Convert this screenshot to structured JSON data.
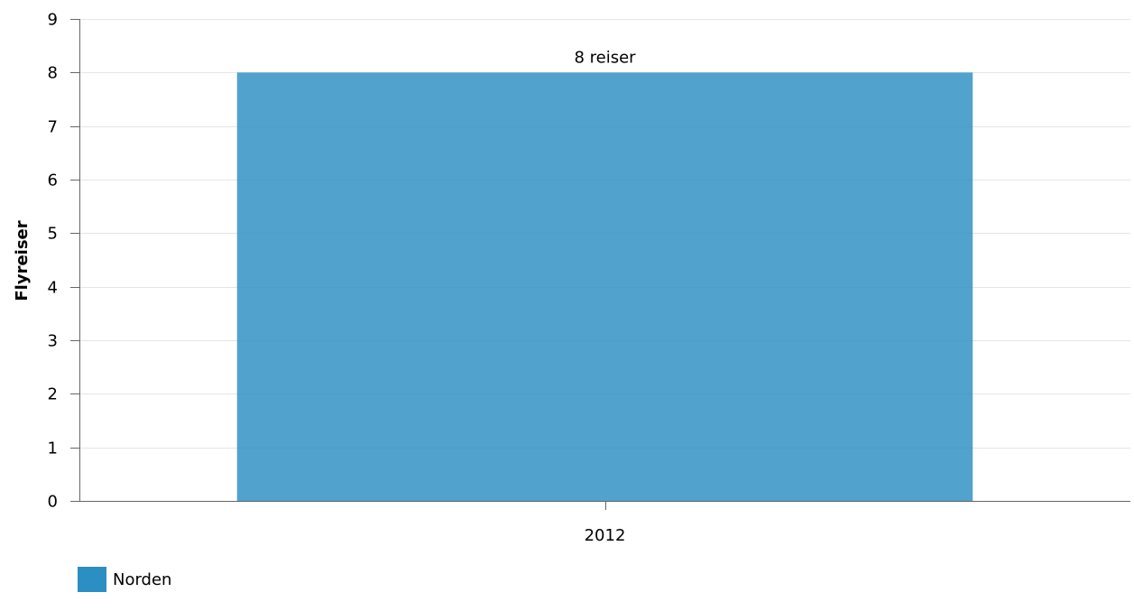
{
  "chart_data": {
    "type": "bar",
    "title": "",
    "xlabel": "",
    "ylabel": "Flyreiser",
    "categories": [
      "2012"
    ],
    "series": [
      {
        "name": "Norden",
        "values": [
          8
        ],
        "color": "#2b8fc3",
        "data_labels": [
          "8 reiser"
        ]
      }
    ],
    "ylim": [
      0,
      9
    ],
    "yticks": [
      0,
      1,
      2,
      3,
      4,
      5,
      6,
      7,
      8,
      9
    ],
    "grid": true,
    "legend_position": "bottom-left"
  }
}
